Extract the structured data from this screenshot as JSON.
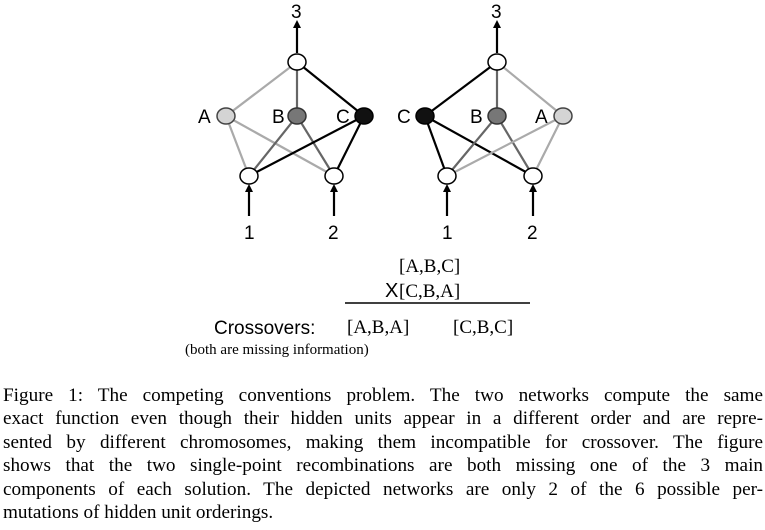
{
  "figure": {
    "left_network": {
      "output_label": "3",
      "hidden_labels": [
        "A",
        "B",
        "C"
      ],
      "input_labels": [
        "1",
        "2"
      ]
    },
    "right_network": {
      "output_label": "3",
      "hidden_labels": [
        "C",
        "B",
        "A"
      ],
      "input_labels": [
        "1",
        "2"
      ]
    },
    "parent_1": "[A,B,C]",
    "cross_symbol": "X",
    "parent_2": "[C,B,A]",
    "crossovers_label": "Crossovers:",
    "crossover_1": "[A,B,A]",
    "crossover_2": "[C,B,C]",
    "crossovers_note": "(both are missing information)",
    "colors": {
      "A": "#d4d4d4",
      "B": "#777777",
      "C": "#111111",
      "edge_A": "#aaaaaa",
      "edge_B": "#666666",
      "edge_C": "#000000"
    }
  },
  "caption": {
    "lines": [
      "Figure 1: The competing conventions problem. The two networks compute the same",
      "exact function even though their hidden units appear in a different order and are repre-",
      "sented by different chromosomes, making them incompatible for crossover. The figure",
      "shows that the two single-point recombinations are both missing one of the 3 main",
      "components of each solution. The depicted networks are only 2 of the 6 possible per-",
      "mutations of hidden unit orderings."
    ]
  }
}
